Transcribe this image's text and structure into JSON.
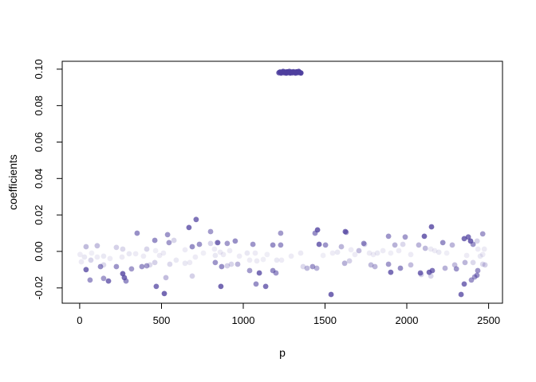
{
  "window": {
    "background": "#ffffff"
  },
  "chart_data": {
    "type": "scatter",
    "title": "",
    "xlabel": "p",
    "ylabel": "coefficients",
    "x_ticks": [
      0,
      500,
      1000,
      1500,
      2000,
      2500
    ],
    "y_ticks": [
      -0.02,
      0.0,
      0.02,
      0.04,
      0.06,
      0.08,
      0.1
    ],
    "y_tick_labels": [
      "-0.02",
      "0.00",
      "0.02",
      "0.04",
      "0.06",
      "0.08",
      "0.10"
    ],
    "xlim": [
      -107,
      2585
    ],
    "ylim": [
      -0.0284,
      0.1043
    ],
    "grid": false,
    "legend": "none",
    "frame_color": "#000000",
    "point_base_color": "#4e3f9e",
    "point_radius": 3.4,
    "point_format": [
      "p",
      "coefficient",
      "alpha"
    ],
    "points": [
      [
        10,
        -0.0057,
        0.11
      ],
      [
        2,
        -0.0017,
        0.1
      ],
      [
        29,
        -0.0031,
        0.12
      ],
      [
        107,
        -0.0031,
        0.1
      ],
      [
        146,
        -0.0026,
        0.12
      ],
      [
        185,
        -0.0039,
        0.1
      ],
      [
        259,
        -0.0031,
        0.11
      ],
      [
        302,
        -0.0013,
        0.12
      ],
      [
        342,
        -0.0013,
        0.1
      ],
      [
        488,
        -0.0022,
        0.11
      ],
      [
        512,
        -0.0009,
        0.1
      ],
      [
        590,
        -0.0048,
        0.12
      ],
      [
        644,
        0.0009,
        0.1
      ],
      [
        644,
        -0.0065,
        0.12
      ],
      [
        673,
        -0.0061,
        0.11
      ],
      [
        824,
        0.0013,
        0.1
      ],
      [
        829,
        -0.0022,
        0.12
      ],
      [
        859,
        -0.0004,
        0.1
      ],
      [
        878,
        -0.0017,
        0.11
      ],
      [
        917,
        0.0004,
        0.1
      ],
      [
        1024,
        -0.0009,
        0.12
      ],
      [
        1039,
        -0.0048,
        0.1
      ],
      [
        1083,
        -0.0052,
        0.11
      ],
      [
        1073,
        -0.0009,
        0.1
      ],
      [
        1205,
        -0.0048,
        0.12
      ],
      [
        1234,
        -0.0048,
        0.1
      ],
      [
        1351,
        -0.0009,
        0.11
      ],
      [
        1546,
        -0.0009,
        0.1
      ],
      [
        1576,
        -0.0004,
        0.12
      ],
      [
        1683,
        -0.0017,
        0.1
      ],
      [
        1771,
        -0.0009,
        0.11
      ],
      [
        1795,
        -0.0017,
        0.1
      ],
      [
        1820,
        -0.0009,
        0.12
      ],
      [
        1854,
        0.0004,
        0.1
      ],
      [
        2147,
        0.0013,
        0.11
      ],
      [
        2171,
        0.0004,
        0.1
      ],
      [
        2196,
        -0.0004,
        0.12
      ],
      [
        2435,
        0.0013,
        0.1
      ],
      [
        2474,
        0.0013,
        0.11
      ],
      [
        2464,
        -0.0017,
        0.1
      ],
      [
        2449,
        -0.0026,
        0.12
      ],
      [
        73,
        -0.0009,
        0.09
      ],
      [
        390,
        -0.0026,
        0.1
      ],
      [
        756,
        -0.0009,
        0.09
      ],
      [
        976,
        -0.0026,
        0.1
      ],
      [
        1146,
        -0.0017,
        0.09
      ],
      [
        1293,
        -0.0026,
        0.1
      ],
      [
        1488,
        -0.0022,
        0.09
      ],
      [
        1659,
        0.0009,
        0.1
      ],
      [
        1902,
        -0.0009,
        0.09
      ],
      [
        2024,
        -0.0017,
        0.1
      ],
      [
        2244,
        -0.0009,
        0.09
      ],
      [
        2366,
        -0.0022,
        0.1
      ],
      [
        464,
        0.0004,
        0.09
      ],
      [
        707,
        -0.0031,
        0.1
      ],
      [
        1122,
        -0.0044,
        0.09
      ],
      [
        1951,
        0.0004,
        0.1
      ],
      [
        68,
        -0.0048,
        0.22
      ],
      [
        146,
        -0.0074,
        0.2
      ],
      [
        224,
        0.0022,
        0.24
      ],
      [
        263,
        0.0013,
        0.2
      ],
      [
        410,
        0.0013,
        0.22
      ],
      [
        429,
        -0.0074,
        0.2
      ],
      [
        459,
        -0.0061,
        0.24
      ],
      [
        576,
        0.0061,
        0.22
      ],
      [
        551,
        -0.007,
        0.2
      ],
      [
        688,
        -0.0135,
        0.24
      ],
      [
        800,
        0.0044,
        0.22
      ],
      [
        839,
        0.0048,
        0.2
      ],
      [
        902,
        -0.0079,
        0.24
      ],
      [
        927,
        -0.007,
        0.22
      ],
      [
        1366,
        -0.0083,
        0.2
      ],
      [
        1649,
        -0.0052,
        0.24
      ],
      [
        1742,
        0.0039,
        0.22
      ],
      [
        1976,
        0.0039,
        0.2
      ],
      [
        2088,
        -0.0127,
        0.24
      ],
      [
        2147,
        -0.0135,
        0.22
      ],
      [
        2405,
        -0.0061,
        0.2
      ],
      [
        2478,
        -0.0074,
        0.24
      ],
      [
        2430,
        0.0057,
        0.22
      ],
      [
        2464,
        -0.007,
        0.2
      ],
      [
        527,
        -0.0144,
        0.34
      ],
      [
        966,
        -0.007,
        0.38
      ],
      [
        1390,
        -0.0092,
        0.36
      ],
      [
        1449,
        -0.0092,
        0.4
      ],
      [
        1600,
        0.0026,
        0.38
      ],
      [
        1707,
        0.0004,
        0.34
      ],
      [
        1620,
        -0.0065,
        0.4
      ],
      [
        1781,
        -0.0074,
        0.36
      ],
      [
        1805,
        -0.0083,
        0.38
      ],
      [
        1927,
        0.0035,
        0.4
      ],
      [
        2024,
        -0.0074,
        0.34
      ],
      [
        2073,
        0.0035,
        0.38
      ],
      [
        2113,
        0.0017,
        0.36
      ],
      [
        2234,
        -0.0092,
        0.4
      ],
      [
        2278,
        0.0035,
        0.38
      ],
      [
        2293,
        -0.0074,
        0.34
      ],
      [
        2356,
        -0.0061,
        0.38
      ],
      [
        39,
        0.0026,
        0.35
      ],
      [
        107,
        0.0031,
        0.33
      ],
      [
        127,
        -0.0083,
        0.58
      ],
      [
        224,
        -0.0083,
        0.55
      ],
      [
        317,
        -0.0096,
        0.52
      ],
      [
        351,
        0.01,
        0.58
      ],
      [
        380,
        -0.0083,
        0.55
      ],
      [
        410,
        -0.0079,
        0.52
      ],
      [
        459,
        0.0061,
        0.58
      ],
      [
        537,
        0.0092,
        0.55
      ],
      [
        546,
        0.0048,
        0.52
      ],
      [
        688,
        0.0026,
        0.58
      ],
      [
        732,
        0.0039,
        0.55
      ],
      [
        800,
        0.0109,
        0.52
      ],
      [
        868,
        -0.0083,
        0.58
      ],
      [
        829,
        -0.0061,
        0.55
      ],
      [
        902,
        0.0044,
        0.52
      ],
      [
        951,
        0.0057,
        0.58
      ],
      [
        1059,
        0.0039,
        0.55
      ],
      [
        1039,
        -0.0105,
        0.52
      ],
      [
        1181,
        0.0035,
        0.58
      ],
      [
        1229,
        0.0035,
        0.55
      ],
      [
        1229,
        0.01,
        0.52
      ],
      [
        1181,
        -0.0105,
        0.58
      ],
      [
        1200,
        -0.0118,
        0.55
      ],
      [
        1424,
        -0.0083,
        0.52
      ],
      [
        1439,
        0.01,
        0.58
      ],
      [
        1503,
        0.0035,
        0.55
      ],
      [
        1629,
        0.0105,
        0.52
      ],
      [
        1737,
        0.0044,
        0.58
      ],
      [
        1888,
        0.0083,
        0.55
      ],
      [
        1990,
        0.0079,
        0.52
      ],
      [
        2220,
        0.0048,
        0.58
      ],
      [
        2303,
        -0.0096,
        0.55
      ],
      [
        1888,
        -0.007,
        0.52
      ],
      [
        1961,
        -0.0092,
        0.58
      ],
      [
        2395,
        -0.0157,
        0.55
      ],
      [
        2415,
        -0.014,
        0.52
      ],
      [
        2429,
        -0.0131,
        0.58
      ],
      [
        2434,
        -0.0105,
        0.55
      ],
      [
        2464,
        0.0096,
        0.52
      ],
      [
        1078,
        -0.0179,
        0.58
      ],
      [
        63,
        -0.0157,
        0.55
      ],
      [
        146,
        -0.0148,
        0.52
      ],
      [
        283,
        -0.0162,
        0.58
      ],
      [
        2405,
        0.0039,
        0.55
      ],
      [
        39,
        -0.01,
        0.75
      ],
      [
        176,
        -0.0162,
        0.72
      ],
      [
        263,
        -0.0122,
        0.78
      ],
      [
        273,
        -0.0144,
        0.75
      ],
      [
        468,
        -0.0192,
        0.72
      ],
      [
        517,
        -0.0231,
        0.78
      ],
      [
        668,
        0.0131,
        0.75
      ],
      [
        712,
        0.0175,
        0.72
      ],
      [
        844,
        0.0048,
        0.7
      ],
      [
        863,
        -0.0192,
        0.78
      ],
      [
        1098,
        -0.0118,
        0.75
      ],
      [
        1137,
        -0.0192,
        0.72
      ],
      [
        1454,
        0.0118,
        0.78
      ],
      [
        1464,
        0.0039,
        0.75
      ],
      [
        1624,
        0.0109,
        0.72
      ],
      [
        1537,
        -0.0236,
        0.78
      ],
      [
        1902,
        -0.0114,
        0.75
      ],
      [
        2083,
        -0.0118,
        0.72
      ],
      [
        2107,
        0.0083,
        0.78
      ],
      [
        2137,
        -0.0114,
        0.75
      ],
      [
        2156,
        -0.0105,
        0.72
      ],
      [
        2151,
        0.0135,
        0.78
      ],
      [
        2351,
        0.007,
        0.75
      ],
      [
        2376,
        0.0079,
        0.72
      ],
      [
        2390,
        0.0057,
        0.78
      ],
      [
        2332,
        -0.0236,
        0.75
      ],
      [
        2351,
        -0.0179,
        0.72
      ],
      [
        1218,
        0.098,
        0.85
      ],
      [
        1225,
        0.0984,
        0.95
      ],
      [
        1231,
        0.0978,
        0.88
      ],
      [
        1238,
        0.0983,
        1.0
      ],
      [
        1244,
        0.0987,
        0.92
      ],
      [
        1250,
        0.098,
        0.97
      ],
      [
        1257,
        0.0984,
        0.9
      ],
      [
        1263,
        0.0978,
        0.95
      ],
      [
        1269,
        0.0985,
        1.0
      ],
      [
        1276,
        0.0981,
        0.88
      ],
      [
        1282,
        0.0987,
        0.93
      ],
      [
        1288,
        0.0979,
        0.97
      ],
      [
        1295,
        0.0984,
        0.9
      ],
      [
        1301,
        0.098,
        1.0
      ],
      [
        1307,
        0.0986,
        0.92
      ],
      [
        1314,
        0.0982,
        0.95
      ],
      [
        1320,
        0.0978,
        0.88
      ],
      [
        1326,
        0.0985,
        0.97
      ],
      [
        1333,
        0.0981,
        0.92
      ],
      [
        1339,
        0.0987,
        0.95
      ],
      [
        1345,
        0.0982,
        0.9
      ],
      [
        1352,
        0.0979,
        0.97
      ]
    ]
  }
}
